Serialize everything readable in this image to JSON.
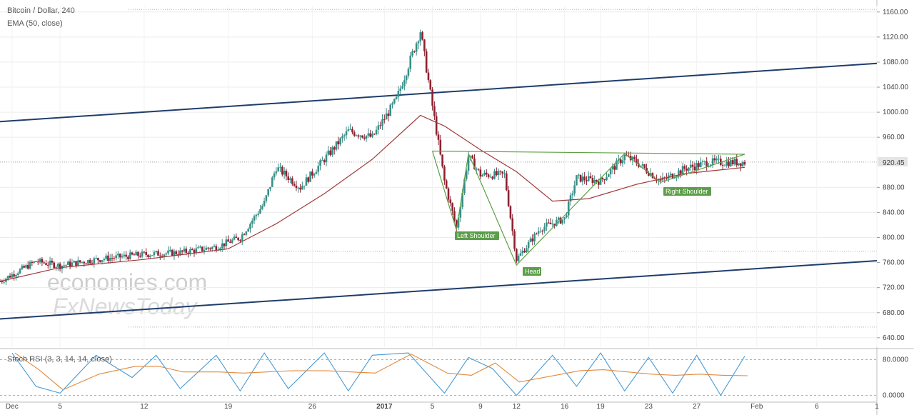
{
  "header": {
    "symbol": "Bitcoin / Dollar, 240",
    "indicator": "EMA (50, close)"
  },
  "watermark": {
    "line1": "economies.com",
    "line2": "FxNewsToday"
  },
  "price_axis": {
    "ticks": [
      1160,
      1120,
      1080,
      1040,
      1000,
      960,
      880,
      840,
      800,
      760,
      720,
      680,
      640
    ],
    "tick_labels": [
      "1160.00",
      "1120.00",
      "1080.00",
      "1040.00",
      "1000.00",
      "960.00",
      "880.00",
      "840.00",
      "800.00",
      "760.00",
      "720.00",
      "680.00",
      "640.00"
    ],
    "current_price": "920.45",
    "current_price_value": 920.45,
    "ylim": [
      625,
      1170
    ]
  },
  "osc_axis": {
    "tick_labels": [
      "80.0000",
      "0.0000"
    ],
    "ticks": [
      80,
      0
    ],
    "ylim": [
      -12,
      100
    ]
  },
  "oscillator": {
    "label": "Stoch RSI (3, 3, 14, 14, close)"
  },
  "date_axis": {
    "labels": [
      "Dec",
      "5",
      "12",
      "19",
      "26",
      "2017",
      "5",
      "9",
      "12",
      "16",
      "19",
      "23",
      "27",
      "Feb",
      "6",
      "1"
    ],
    "bold": [
      false,
      false,
      false,
      false,
      false,
      true,
      false,
      false,
      false,
      false,
      false,
      false,
      false,
      false,
      false,
      false
    ],
    "dates": [
      "2016-12-01",
      "2016-12-05",
      "2016-12-12",
      "2016-12-19",
      "2016-12-26",
      "2017-01-01",
      "2017-01-05",
      "2017-01-09",
      "2017-01-12",
      "2017-01-16",
      "2017-01-19",
      "2017-01-23",
      "2017-01-27",
      "2017-02-01",
      "2017-02-06",
      "2017-02-11"
    ]
  },
  "annotations": {
    "left_shoulder": "Left Shoulder",
    "head": "Head",
    "right_shoulder": "Right Shoulder"
  },
  "colors": {
    "bull": "#3a8e86",
    "bear": "#8b2131",
    "ema": "#a03a3a",
    "channel": "#1f3d6b",
    "pattern": "#5ca044",
    "label_bg": "#5c9e4a",
    "price_tag": "#e4e4e4",
    "osc_k": "#4a9ad4",
    "osc_d": "#e08a3c"
  },
  "chart_data": {
    "type": "candlestick",
    "title": "Bitcoin / Dollar, 240",
    "x_range": [
      "2016-11-30",
      "2017-02-11"
    ],
    "series": [
      {
        "name": "Bitcoin / Dollar",
        "points": [
          {
            "date": "2016-11-30",
            "price": 730
          },
          {
            "date": "2016-12-03",
            "price": 762
          },
          {
            "date": "2016-12-05",
            "price": 755
          },
          {
            "date": "2016-12-08",
            "price": 765
          },
          {
            "date": "2016-12-12",
            "price": 773
          },
          {
            "date": "2016-12-15",
            "price": 776
          },
          {
            "date": "2016-12-18",
            "price": 785
          },
          {
            "date": "2016-12-20",
            "price": 800
          },
          {
            "date": "2016-12-22",
            "price": 855
          },
          {
            "date": "2016-12-23",
            "price": 912
          },
          {
            "date": "2016-12-25",
            "price": 880
          },
          {
            "date": "2016-12-27",
            "price": 925
          },
          {
            "date": "2016-12-29",
            "price": 970
          },
          {
            "date": "2016-12-31",
            "price": 960
          },
          {
            "date": "2017-01-02",
            "price": 1020
          },
          {
            "date": "2017-01-04",
            "price": 1130
          },
          {
            "date": "2017-01-05",
            "price": 1010
          },
          {
            "date": "2017-01-06",
            "price": 890
          },
          {
            "date": "2017-01-07",
            "price": 815
          },
          {
            "date": "2017-01-08",
            "price": 930
          },
          {
            "date": "2017-01-09",
            "price": 900
          },
          {
            "date": "2017-01-11",
            "price": 900
          },
          {
            "date": "2017-01-12",
            "price": 765
          },
          {
            "date": "2017-01-14",
            "price": 815
          },
          {
            "date": "2017-01-16",
            "price": 830
          },
          {
            "date": "2017-01-17",
            "price": 895
          },
          {
            "date": "2017-01-19",
            "price": 890
          },
          {
            "date": "2017-01-21",
            "price": 930
          },
          {
            "date": "2017-01-22",
            "price": 920
          },
          {
            "date": "2017-01-24",
            "price": 890
          },
          {
            "date": "2017-01-26",
            "price": 910
          },
          {
            "date": "2017-01-28",
            "price": 920
          },
          {
            "date": "2017-01-31",
            "price": 920
          }
        ]
      },
      {
        "name": "EMA (50, close)",
        "points": [
          {
            "date": "2016-11-30",
            "price": 730
          },
          {
            "date": "2016-12-05",
            "price": 752
          },
          {
            "date": "2016-12-12",
            "price": 765
          },
          {
            "date": "2016-12-19",
            "price": 782
          },
          {
            "date": "2016-12-23",
            "price": 822
          },
          {
            "date": "2016-12-27",
            "price": 870
          },
          {
            "date": "2016-12-31",
            "price": 925
          },
          {
            "date": "2017-01-04",
            "price": 995
          },
          {
            "date": "2017-01-06",
            "price": 978
          },
          {
            "date": "2017-01-09",
            "price": 940
          },
          {
            "date": "2017-01-12",
            "price": 905
          },
          {
            "date": "2017-01-15",
            "price": 858
          },
          {
            "date": "2017-01-18",
            "price": 862
          },
          {
            "date": "2017-01-22",
            "price": 885
          },
          {
            "date": "2017-01-26",
            "price": 902
          },
          {
            "date": "2017-01-31",
            "price": 912
          }
        ]
      },
      {
        "name": "Stoch RSI %K",
        "points": [
          {
            "date": "2016-12-01",
            "value": 95
          },
          {
            "date": "2016-12-03",
            "value": 20
          },
          {
            "date": "2016-12-05",
            "value": 5
          },
          {
            "date": "2016-12-08",
            "value": 90
          },
          {
            "date": "2016-12-11",
            "value": 40
          },
          {
            "date": "2016-12-13",
            "value": 90
          },
          {
            "date": "2016-12-15",
            "value": 15
          },
          {
            "date": "2016-12-18",
            "value": 90
          },
          {
            "date": "2016-12-20",
            "value": 10
          },
          {
            "date": "2016-12-22",
            "value": 95
          },
          {
            "date": "2016-12-24",
            "value": 15
          },
          {
            "date": "2016-12-27",
            "value": 95
          },
          {
            "date": "2016-12-29",
            "value": 10
          },
          {
            "date": "2016-12-31",
            "value": 90
          },
          {
            "date": "2017-01-03",
            "value": 95
          },
          {
            "date": "2017-01-06",
            "value": 5
          },
          {
            "date": "2017-01-08",
            "value": 85
          },
          {
            "date": "2017-01-10",
            "value": 60
          },
          {
            "date": "2017-01-12",
            "value": 0
          },
          {
            "date": "2017-01-15",
            "value": 90
          },
          {
            "date": "2017-01-17",
            "value": 20
          },
          {
            "date": "2017-01-19",
            "value": 95
          },
          {
            "date": "2017-01-21",
            "value": 10
          },
          {
            "date": "2017-01-23",
            "value": 85
          },
          {
            "date": "2017-01-25",
            "value": 5
          },
          {
            "date": "2017-01-27",
            "value": 90
          },
          {
            "date": "2017-01-29",
            "value": 0
          },
          {
            "date": "2017-01-31",
            "value": 88
          }
        ]
      }
    ],
    "channel": {
      "upper": [
        {
          "date": "2016-11-30",
          "price": 985
        },
        {
          "date": "2017-02-11",
          "price": 1078
        }
      ],
      "lower": [
        {
          "date": "2016-11-30",
          "price": 670
        },
        {
          "date": "2017-02-11",
          "price": 763
        }
      ]
    },
    "neckline": [
      {
        "date": "2017-01-05",
        "price": 938
      },
      {
        "date": "2017-01-31",
        "price": 933
      }
    ],
    "pattern": {
      "left_shoulder": {
        "date": "2017-01-07",
        "price": 812
      },
      "head": {
        "date": "2017-01-12",
        "price": 756
      },
      "right_shoulder": {
        "date": "2017-01-24",
        "price": 888
      }
    }
  }
}
